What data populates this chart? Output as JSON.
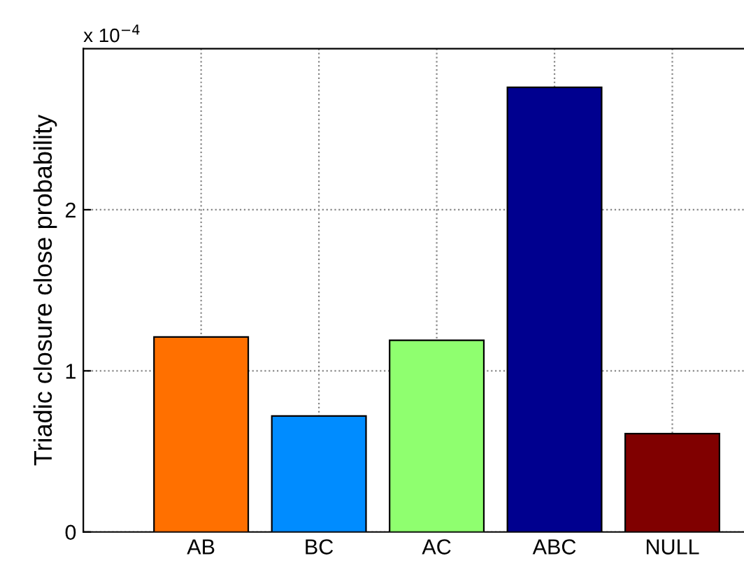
{
  "chart_data": {
    "type": "bar",
    "ylabel": "Triadic closure close probability",
    "annotations": [
      "x 10$^{−4}$"
    ],
    "categories": [
      "AB",
      "BC",
      "AC",
      "ABC",
      "NULL"
    ],
    "values": [
      1.21,
      0.72,
      1.19,
      2.76,
      0.61
    ],
    "colors": [
      "#ff7000",
      "#008cff",
      "#8fff6f",
      "#00008f",
      "#800000"
    ],
    "ylim": [
      0,
      3
    ],
    "yticks": [
      0,
      1,
      2
    ],
    "grid": true
  }
}
